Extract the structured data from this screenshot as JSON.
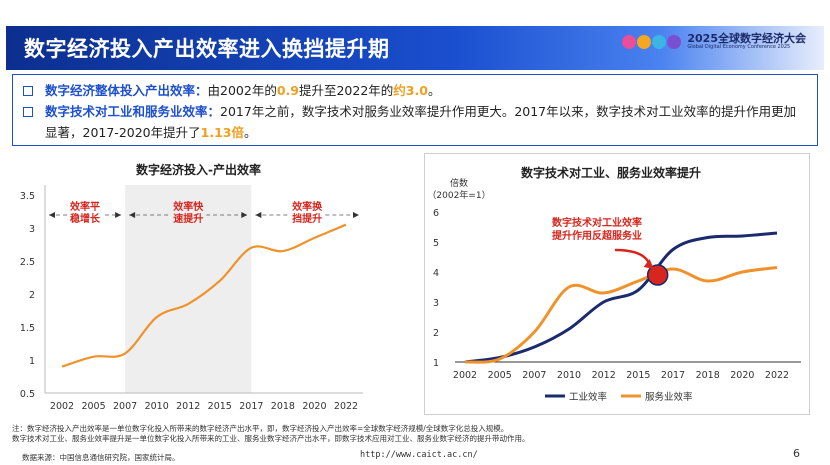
{
  "header": {
    "title": "数字经济投入产出效率进入换挡提升期",
    "logo_cn": "2025全球数字经济大会",
    "logo_en": "Global Digital Economy Conference 2025"
  },
  "bullets": {
    "b1": {
      "label": "数字经济整体投入产出效率：",
      "t1": "由2002年的",
      "v1": "0.9",
      "t2": "提升至2022年的",
      "v2": "约3.0",
      "t3": "。"
    },
    "b2": {
      "label": "数字技术对工业和服务业效率：",
      "t1": "2017年之前，数字技术对服务业效率提升作用更大。2017年以来，数字技术对工业效率的提升作用更加显著，2017-2020年提升了",
      "v1": "1.13倍",
      "t2": "。"
    }
  },
  "chart_data": [
    {
      "type": "line",
      "title": "数字经济投入-产出效率",
      "xlabel": "",
      "ylabel": "",
      "xticks": [
        "2002",
        "2005",
        "2007",
        "2010",
        "2012",
        "2015",
        "2017",
        "2018",
        "2020",
        "2022"
      ],
      "yticks": [
        "0.5",
        "1",
        "1.5",
        "2",
        "2.5",
        "3",
        "3.5"
      ],
      "ylim": [
        0.5,
        3.5
      ],
      "series": [
        {
          "values": [
            0.9,
            1.05,
            1.1,
            1.65,
            1.85,
            2.2,
            2.7,
            2.65,
            2.85,
            3.05
          ]
        }
      ],
      "phases": [
        {
          "label": "效率平\n稳增长",
          "from": "2002",
          "to": "2007"
        },
        {
          "label": "效率快\n速提升",
          "from": "2007",
          "to": "2017"
        },
        {
          "label": "效率换\n挡提升",
          "from": "2017",
          "to": "2022"
        }
      ]
    },
    {
      "type": "line",
      "title": "数字技术对工业、服务业效率提升",
      "ylabel": "倍数\n（2002年=1）",
      "xticks": [
        "2002",
        "2005",
        "2007",
        "2010",
        "2012",
        "2015",
        "2017",
        "2018",
        "2020",
        "2022"
      ],
      "yticks": [
        "1",
        "2",
        "3",
        "4",
        "5",
        "6"
      ],
      "ylim": [
        1,
        6
      ],
      "series": [
        {
          "name": "工业效率",
          "values": [
            1.0,
            1.15,
            1.5,
            2.1,
            3.0,
            3.4,
            4.75,
            5.15,
            5.2,
            5.3
          ]
        },
        {
          "name": "服务业效率",
          "values": [
            1.0,
            1.1,
            2.0,
            3.5,
            3.3,
            3.7,
            4.1,
            3.7,
            4.0,
            4.15
          ]
        }
      ],
      "annotation": "数字技术对工业效率\n提升作用反超服务业",
      "colors": {
        "industry": "#1a2a6c",
        "service": "#f0922b",
        "marker": "#d7261e"
      }
    }
  ],
  "footer": {
    "note1": "注：数字经济投入产出效率是一单位数字化投入所带来的数字经济产出水平，即，数字经济投入产出效率=全球数字经济规模/全球数字化总投入规模。",
    "note2": "数字技术对工业、服务业效率提升是一单位数字化投入所带来的工业、服务业数字经济产出水平，即数字技术应用对工业、服务业数字经济的提升带动作用。",
    "source": "数据来源：中国信息通信研究院，国家统计局。",
    "url": "http://www.caict.ac.cn/",
    "page": "6"
  }
}
